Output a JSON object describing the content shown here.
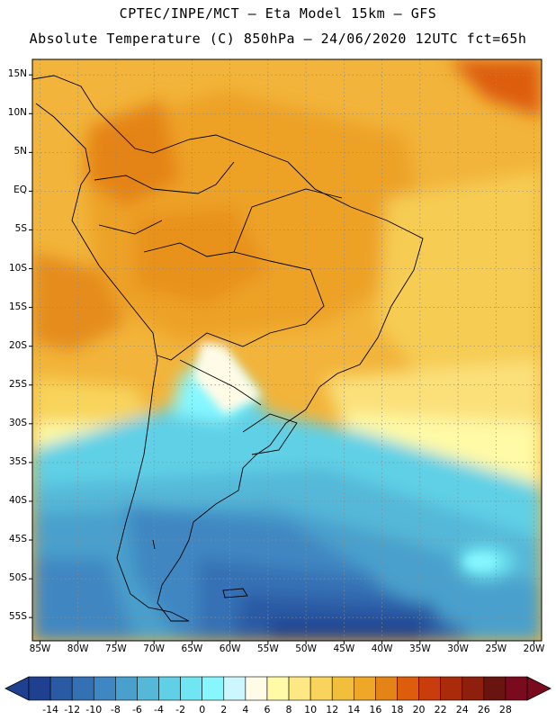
{
  "header": {
    "line1": "CPTEC/INPE/MCT –  Eta Model 15km – GFS",
    "line2": "Absolute Temperature (C) 850hPa – 24/06/2020 12UTC fct=65h"
  },
  "map": {
    "lon_range": [
      -86,
      -19
    ],
    "lat_range": [
      -58,
      17
    ],
    "lat_labels": [
      {
        "text": "15N",
        "value": 15
      },
      {
        "text": "10N",
        "value": 10
      },
      {
        "text": "5N",
        "value": 5
      },
      {
        "text": "EQ",
        "value": 0
      },
      {
        "text": "5S",
        "value": -5
      },
      {
        "text": "10S",
        "value": -10
      },
      {
        "text": "15S",
        "value": -15
      },
      {
        "text": "20S",
        "value": -20
      },
      {
        "text": "25S",
        "value": -25
      },
      {
        "text": "30S",
        "value": -30
      },
      {
        "text": "35S",
        "value": -35
      },
      {
        "text": "40S",
        "value": -40
      },
      {
        "text": "45S",
        "value": -45
      },
      {
        "text": "50S",
        "value": -50
      },
      {
        "text": "55S",
        "value": -55
      }
    ],
    "lon_labels": [
      {
        "text": "85W",
        "value": -85
      },
      {
        "text": "80W",
        "value": -80
      },
      {
        "text": "75W",
        "value": -75
      },
      {
        "text": "70W",
        "value": -70
      },
      {
        "text": "65W",
        "value": -65
      },
      {
        "text": "60W",
        "value": -60
      },
      {
        "text": "55W",
        "value": -55
      },
      {
        "text": "50W",
        "value": -50
      },
      {
        "text": "45W",
        "value": -45
      },
      {
        "text": "40W",
        "value": -40
      },
      {
        "text": "35W",
        "value": -35
      },
      {
        "text": "30W",
        "value": -30
      },
      {
        "text": "25W",
        "value": -25
      },
      {
        "text": "20W",
        "value": -20
      }
    ]
  },
  "colorbar": {
    "colors": [
      "#1f3f8f",
      "#2a5aa4",
      "#3471b4",
      "#3f87c2",
      "#4aa0cc",
      "#55b8d8",
      "#5fd0e6",
      "#6fe6f2",
      "#86f7ff",
      "#cdf7ff",
      "#fffbe6",
      "#fffaa6",
      "#fde883",
      "#f8d45c",
      "#f2bf3c",
      "#eea726",
      "#e58416",
      "#dd5d0d",
      "#c83d0b",
      "#a92b0a",
      "#8d1f0c",
      "#6a1410",
      "#7a0b1e"
    ],
    "labels": [
      "-14",
      "-12",
      "-10",
      "-8",
      "-6",
      "-4",
      "-2",
      "0",
      "2",
      "4",
      "6",
      "8",
      "10",
      "12",
      "14",
      "16",
      "18",
      "20",
      "22",
      "24",
      "26",
      "28"
    ]
  }
}
